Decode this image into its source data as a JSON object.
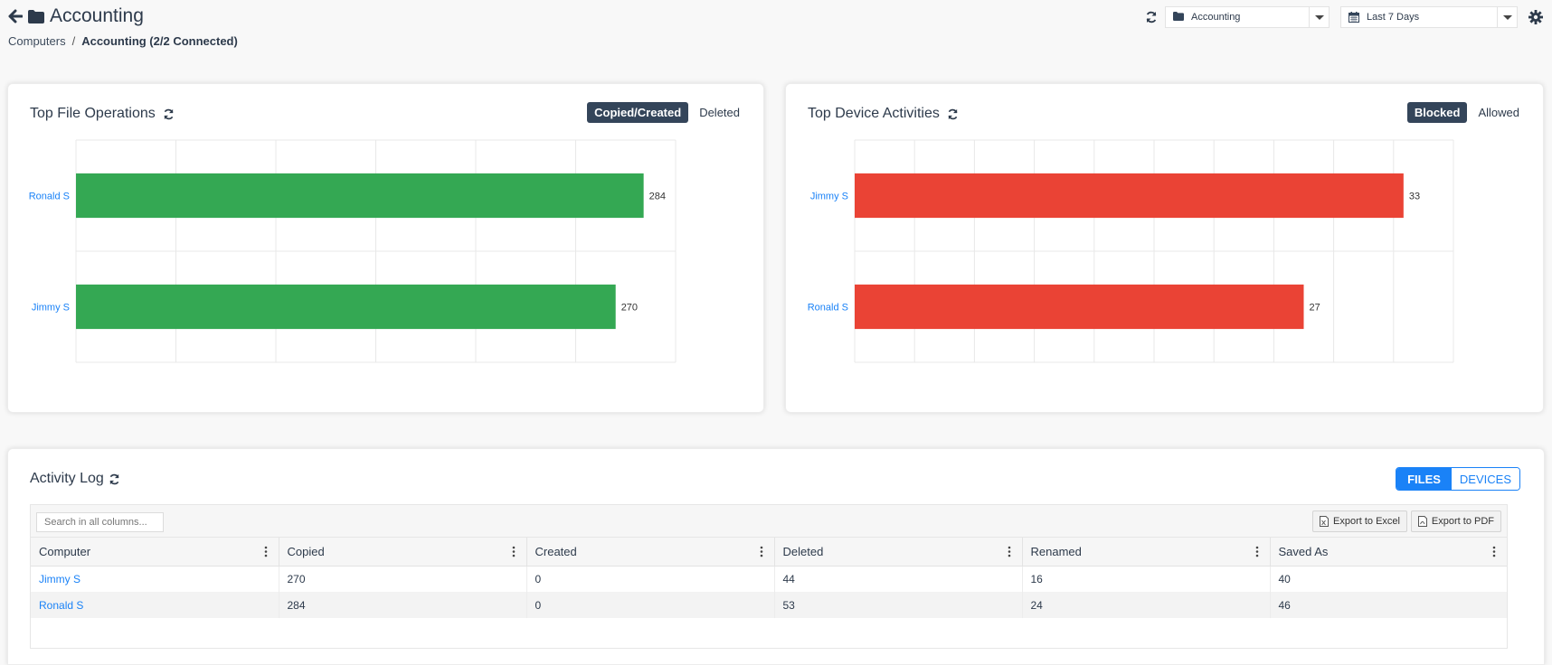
{
  "header": {
    "title": "Accounting",
    "breadcrumb": {
      "root": "Computers",
      "separator": "/",
      "current": "Accounting (2/2 Connected)"
    }
  },
  "controls": {
    "group_select": "Accounting",
    "date_select": "Last 7 Days"
  },
  "file_ops": {
    "title": "Top File Operations",
    "toggle_on": "Copied/Created",
    "toggle_off": "Deleted"
  },
  "device_acts": {
    "title": "Top Device Activities",
    "toggle_on": "Blocked",
    "toggle_off": "Allowed"
  },
  "chart_data": [
    {
      "type": "bar",
      "orientation": "horizontal",
      "categories": [
        "Ronald S",
        "Jimmy S"
      ],
      "values": [
        284,
        270
      ],
      "xlim": [
        0,
        300
      ],
      "grid": true,
      "color": "#34a853"
    },
    {
      "type": "bar",
      "orientation": "horizontal",
      "categories": [
        "Jimmy S",
        "Ronald S"
      ],
      "values": [
        33,
        27
      ],
      "xlim": [
        0,
        36
      ],
      "grid": true,
      "color": "#ea4335"
    }
  ],
  "activity_log": {
    "title": "Activity Log",
    "tab_files": "FILES",
    "tab_devices": "DEVICES",
    "search_placeholder": "Search in all columns...",
    "export_excel": "Export to Excel",
    "export_pdf": "Export to PDF",
    "columns": [
      "Computer",
      "Copied",
      "Created",
      "Deleted",
      "Renamed",
      "Saved As"
    ],
    "rows": [
      [
        "Jimmy S",
        "270",
        "0",
        "44",
        "16",
        "40"
      ],
      [
        "Ronald S",
        "284",
        "0",
        "53",
        "24",
        "46"
      ]
    ]
  },
  "icons": {
    "back": "back-arrow-icon",
    "folder": "folder-icon",
    "refresh": "refresh-icon",
    "calendar": "calendar-icon",
    "settings": "gear-icon"
  }
}
